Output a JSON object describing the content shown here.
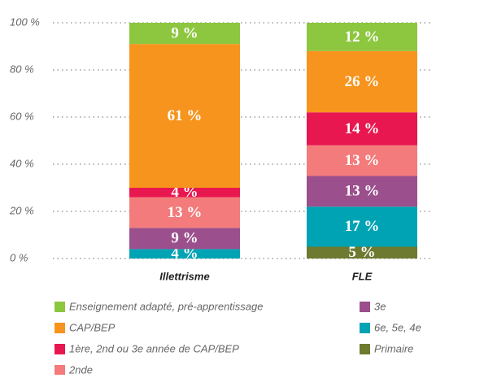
{
  "chart_data": {
    "type": "stacked_bar",
    "categories": [
      "Illettrisme",
      "FLE"
    ],
    "ylim": [
      0,
      100
    ],
    "yticks": [
      {
        "value": 0,
        "label": "0 %"
      },
      {
        "value": 20,
        "label": "20 %"
      },
      {
        "value": 40,
        "label": "40 %"
      },
      {
        "value": 60,
        "label": "60 %"
      },
      {
        "value": 80,
        "label": "80 %"
      },
      {
        "value": 100,
        "label": "100 %"
      }
    ],
    "grid": true,
    "series": [
      {
        "name": "Enseignement adapté, pré-apprentissage",
        "color": "#8dc63f",
        "values": [
          9,
          12
        ],
        "value_labels": [
          "9 %",
          "12 %"
        ]
      },
      {
        "name": "CAP/BEP",
        "color": "#f7941d",
        "values": [
          61,
          26
        ],
        "value_labels": [
          "61 %",
          "26 %"
        ]
      },
      {
        "name": "1ère, 2nd ou 3e année de CAP/BEP",
        "color": "#e8174f",
        "values": [
          4,
          14
        ],
        "value_labels": [
          "4 %",
          "14 %"
        ]
      },
      {
        "name": "2nde",
        "color": "#f37b7b",
        "values": [
          13,
          13
        ],
        "value_labels": [
          "13 %",
          "13 %"
        ]
      },
      {
        "name": "3e",
        "color": "#9b4f8c",
        "values": [
          9,
          13
        ],
        "value_labels": [
          "9 %",
          "13 %"
        ]
      },
      {
        "name": "6e, 5e, 4e",
        "color": "#00a3b4",
        "values": [
          4,
          17
        ],
        "value_labels": [
          "4 %",
          "17 %"
        ]
      },
      {
        "name": "Primaire",
        "color": "#6d7a30",
        "values": [
          null,
          5
        ],
        "value_labels": [
          null,
          "5 %"
        ]
      }
    ]
  }
}
